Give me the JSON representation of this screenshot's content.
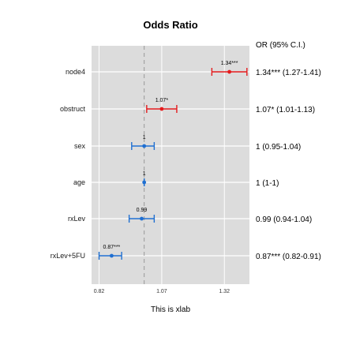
{
  "chart_data": {
    "type": "forest",
    "title": "Odds Ratio",
    "xlabel": "This is xlab",
    "or_header": "OR (95% C.I.)",
    "xlim": [
      0.79,
      1.42
    ],
    "xticks": [
      {
        "value": 0.82,
        "label": "0.82"
      },
      {
        "value": 1.07,
        "label": "1.07"
      },
      {
        "value": 1.32,
        "label": "1.32"
      }
    ],
    "reference_line": 1,
    "colors": {
      "positive": "#e41a1c",
      "null": "#1f6fd1",
      "negative": "#1f6fd1",
      "panel": "#dcdcdc",
      "grid": "#ffffff",
      "ref": "#999999"
    },
    "rows": [
      {
        "name": "node4",
        "estimate": 1.34,
        "lower": 1.27,
        "upper": 1.41,
        "label": "1.34***",
        "or_text": "1.34*** (1.27-1.41)",
        "group": "positive"
      },
      {
        "name": "obstruct",
        "estimate": 1.07,
        "lower": 1.01,
        "upper": 1.13,
        "label": "1.07*",
        "or_text": "1.07* (1.01-1.13)",
        "group": "positive"
      },
      {
        "name": "sex",
        "estimate": 1,
        "lower": 0.95,
        "upper": 1.04,
        "label": "1",
        "or_text": "1 (0.95-1.04)",
        "group": "null"
      },
      {
        "name": "age",
        "estimate": 1,
        "lower": 1,
        "upper": 1,
        "label": "1",
        "or_text": "1 (1-1)",
        "group": "null"
      },
      {
        "name": "rxLev",
        "estimate": 0.99,
        "lower": 0.94,
        "upper": 1.04,
        "label": "0.99",
        "or_text": "0.99 (0.94-1.04)",
        "group": "null"
      },
      {
        "name": "rxLev+5FU",
        "estimate": 0.87,
        "lower": 0.82,
        "upper": 0.91,
        "label": "0.87***",
        "or_text": "0.87*** (0.82-0.91)",
        "group": "negative"
      }
    ]
  }
}
